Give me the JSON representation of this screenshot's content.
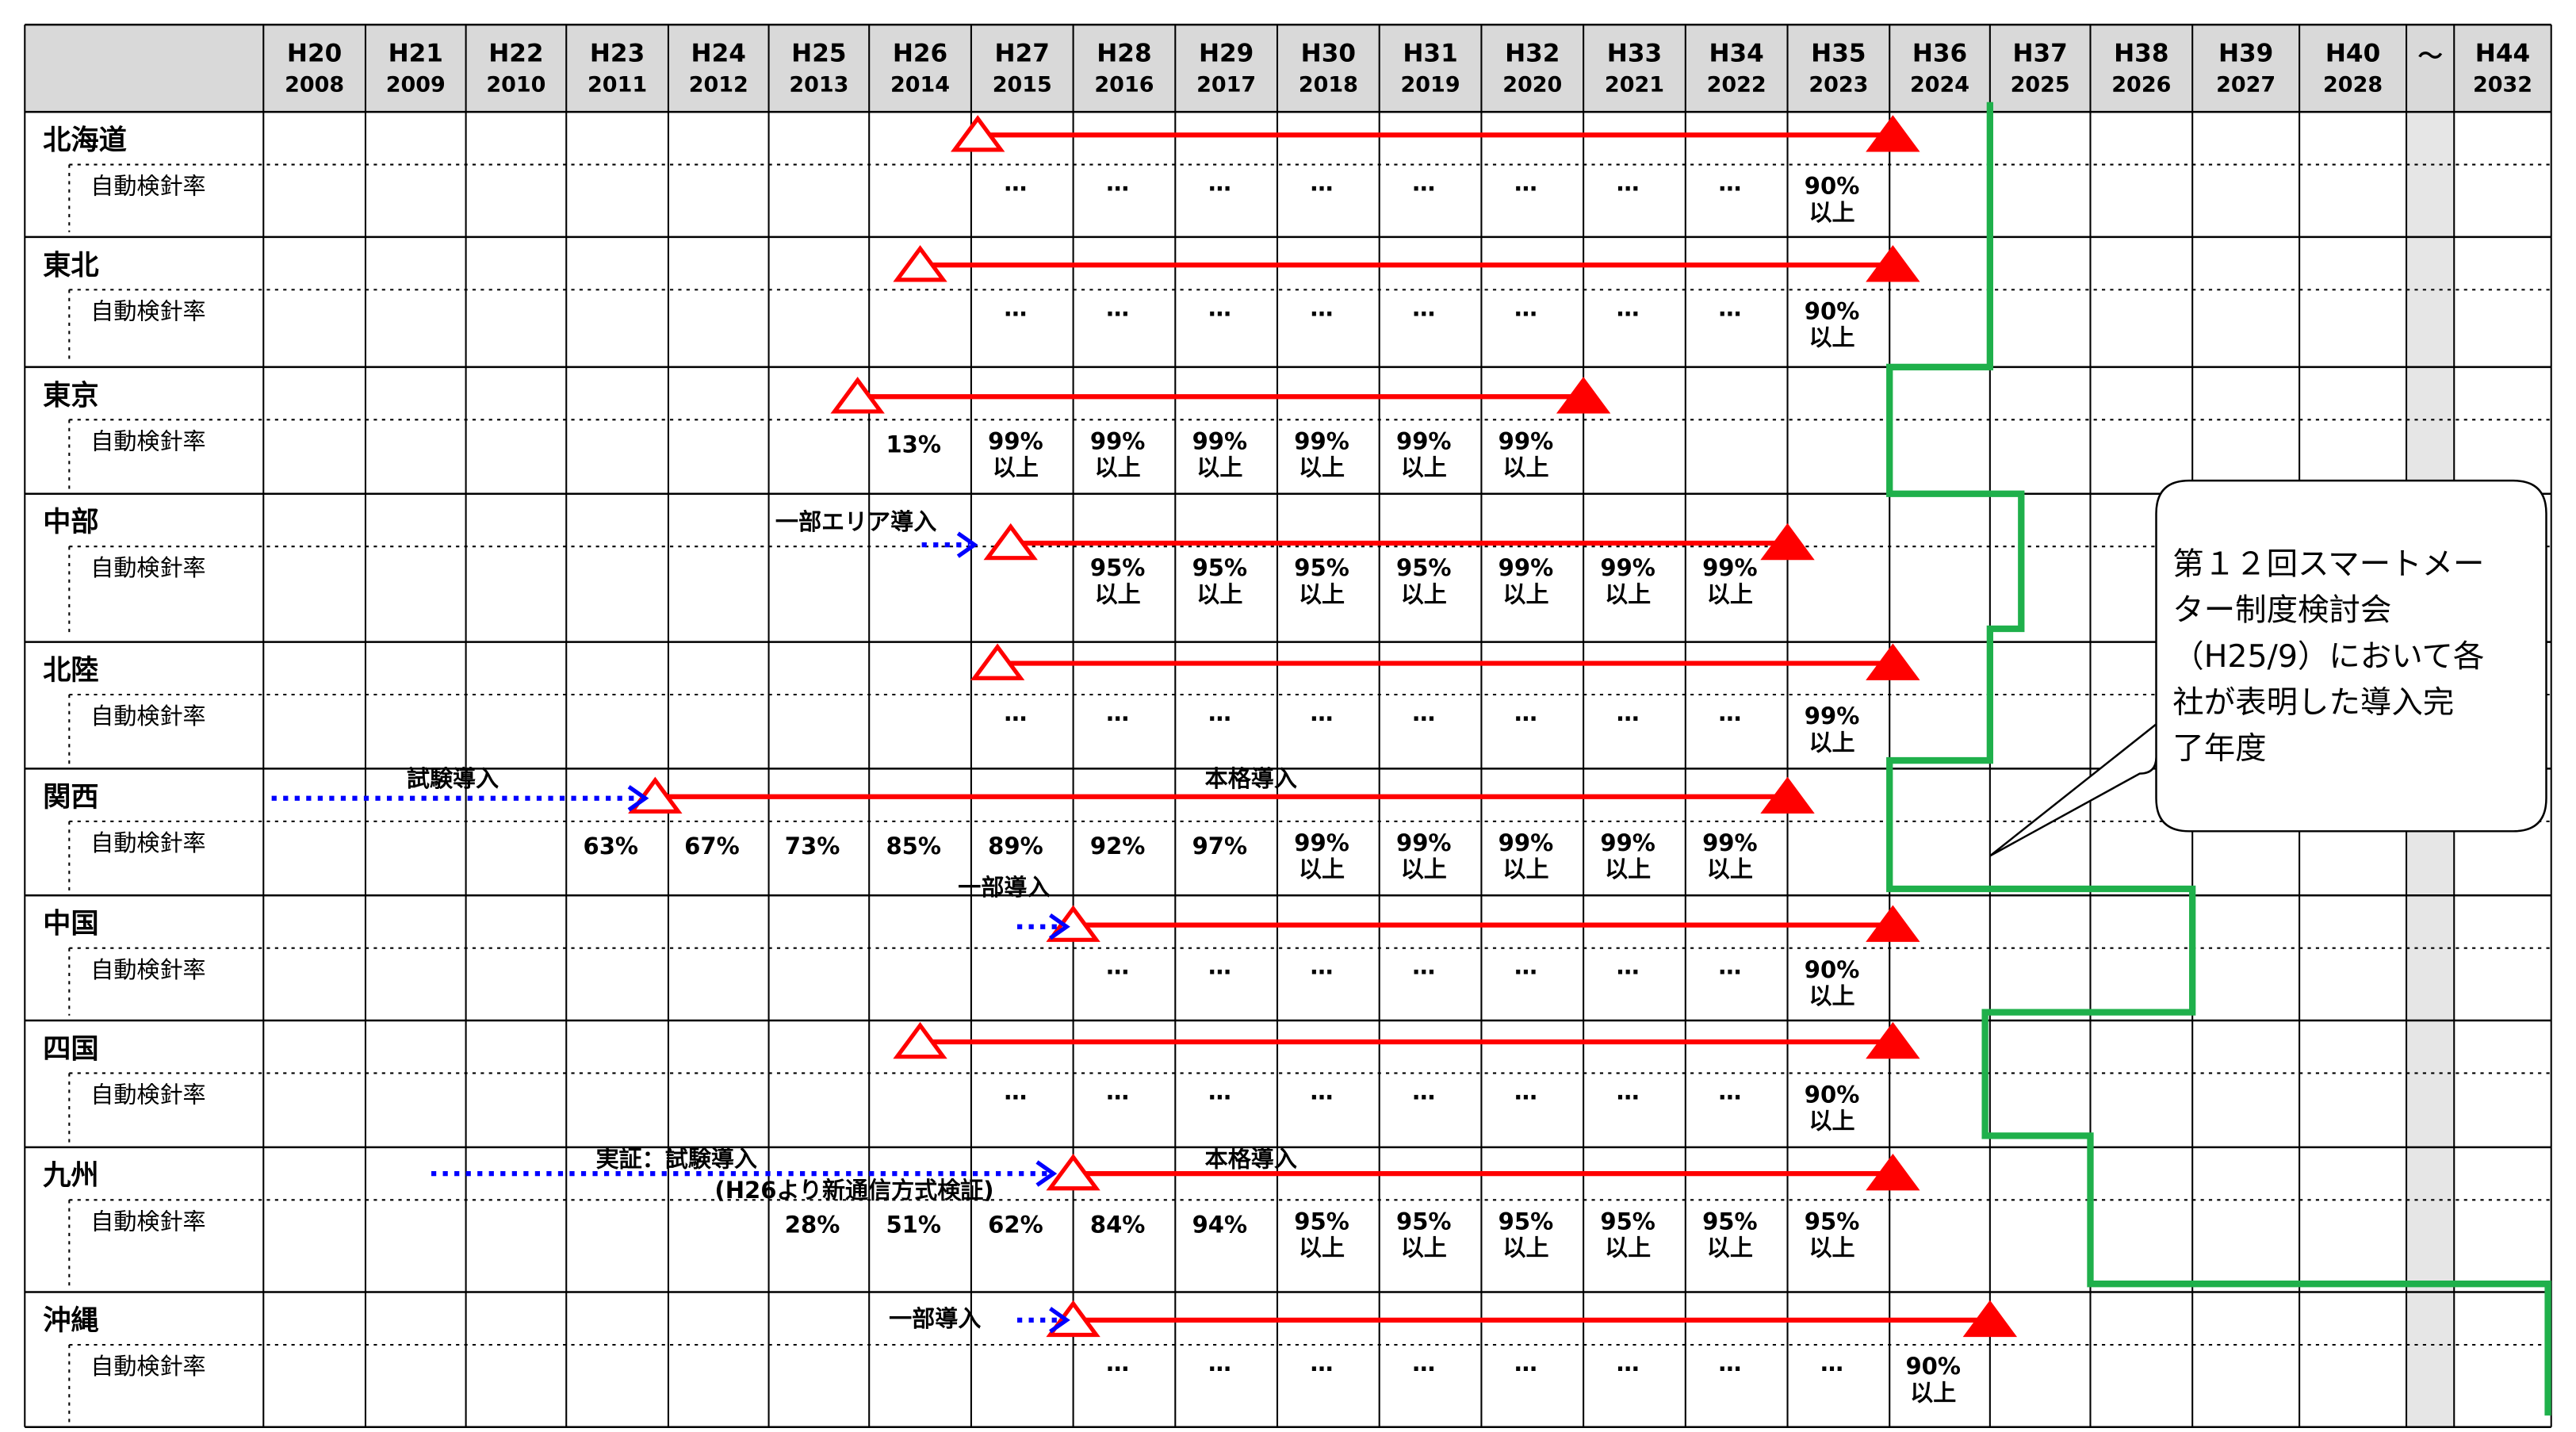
{
  "header": {
    "columns": [
      {
        "era": "H20",
        "year": "2008"
      },
      {
        "era": "H21",
        "year": "2009"
      },
      {
        "era": "H22",
        "year": "2010"
      },
      {
        "era": "H23",
        "year": "2011"
      },
      {
        "era": "H24",
        "year": "2012"
      },
      {
        "era": "H25",
        "year": "2013"
      },
      {
        "era": "H26",
        "year": "2014"
      },
      {
        "era": "H27",
        "year": "2015"
      },
      {
        "era": "H28",
        "year": "2016"
      },
      {
        "era": "H29",
        "year": "2017"
      },
      {
        "era": "H30",
        "year": "2018"
      },
      {
        "era": "H31",
        "year": "2019"
      },
      {
        "era": "H32",
        "year": "2020"
      },
      {
        "era": "H33",
        "year": "2021"
      },
      {
        "era": "H34",
        "year": "2022"
      },
      {
        "era": "H35",
        "year": "2023"
      },
      {
        "era": "H36",
        "year": "2024"
      },
      {
        "era": "H37",
        "year": "2025"
      },
      {
        "era": "H38",
        "year": "2026"
      },
      {
        "era": "H39",
        "year": "2027"
      },
      {
        "era": "H40",
        "year": "2028"
      },
      {
        "era": "～"
      },
      {
        "era": "H44",
        "year": "2032"
      }
    ]
  },
  "rows": [
    {
      "region": "北海道",
      "metric": "自動検針率",
      "notes": [],
      "values": [
        null,
        null,
        null,
        null,
        null,
        null,
        null,
        "…",
        "…",
        "…",
        "…",
        "…",
        "…",
        "…",
        "…",
        [
          "90%",
          "以上"
        ],
        null,
        null,
        null,
        null,
        null,
        null,
        null
      ]
    },
    {
      "region": "東北",
      "metric": "自動検針率",
      "notes": [],
      "values": [
        null,
        null,
        null,
        null,
        null,
        null,
        null,
        "…",
        "…",
        "…",
        "…",
        "…",
        "…",
        "…",
        "…",
        [
          "90%",
          "以上"
        ],
        null,
        null,
        null,
        null,
        null,
        null,
        null
      ]
    },
    {
      "region": "東京",
      "metric": "自動検針率",
      "notes": [],
      "values": [
        null,
        null,
        null,
        null,
        null,
        null,
        "13%",
        [
          "99%",
          "以上"
        ],
        [
          "99%",
          "以上"
        ],
        [
          "99%",
          "以上"
        ],
        [
          "99%",
          "以上"
        ],
        [
          "99%",
          "以上"
        ],
        [
          "99%",
          "以上"
        ],
        null,
        null,
        null,
        null,
        null,
        null,
        null,
        null,
        null,
        null
      ]
    },
    {
      "region": "中部",
      "metric": "自動検針率",
      "notes": [
        "一部エリア導入"
      ],
      "values": [
        null,
        null,
        null,
        null,
        null,
        null,
        null,
        null,
        [
          "95%",
          "以上"
        ],
        [
          "95%",
          "以上"
        ],
        [
          "95%",
          "以上"
        ],
        [
          "95%",
          "以上"
        ],
        [
          "99%",
          "以上"
        ],
        [
          "99%",
          "以上"
        ],
        [
          "99%",
          "以上"
        ],
        null,
        null,
        null,
        null,
        null,
        null,
        null,
        null
      ]
    },
    {
      "region": "北陸",
      "metric": "自動検針率",
      "notes": [],
      "values": [
        null,
        null,
        null,
        null,
        null,
        null,
        null,
        "…",
        "…",
        "…",
        "…",
        "…",
        "…",
        "…",
        "…",
        [
          "99%",
          "以上"
        ],
        null,
        null,
        null,
        null,
        null,
        null,
        null
      ]
    },
    {
      "region": "関西",
      "metric": "自動検針率",
      "notes": [
        "試験導入",
        "本格導入"
      ],
      "values": [
        null,
        null,
        null,
        "63%",
        "67%",
        "73%",
        "85%",
        "89%",
        "92%",
        "97%",
        [
          "99%",
          "以上"
        ],
        [
          "99%",
          "以上"
        ],
        [
          "99%",
          "以上"
        ],
        [
          "99%",
          "以上"
        ],
        [
          "99%",
          "以上"
        ],
        null,
        null,
        null,
        null,
        null,
        null,
        null,
        null
      ]
    },
    {
      "region": "中国",
      "metric": "自動検針率",
      "notes": [
        "一部導入"
      ],
      "values": [
        null,
        null,
        null,
        null,
        null,
        null,
        null,
        null,
        "…",
        "…",
        "…",
        "…",
        "…",
        "…",
        "…",
        [
          "90%",
          "以上"
        ],
        null,
        null,
        null,
        null,
        null,
        null,
        null
      ]
    },
    {
      "region": "四国",
      "metric": "自動検針率",
      "notes": [],
      "values": [
        null,
        null,
        null,
        null,
        null,
        null,
        null,
        "…",
        "…",
        "…",
        "…",
        "…",
        "…",
        "…",
        "…",
        [
          "90%",
          "以上"
        ],
        null,
        null,
        null,
        null,
        null,
        null,
        null
      ]
    },
    {
      "region": "九州",
      "metric": "自動検針率",
      "notes": [
        "実証：試験導入",
        "(H26より新通信方式検証)",
        "本格導入"
      ],
      "values": [
        null,
        null,
        null,
        null,
        null,
        "28%",
        "51%",
        "62%",
        "84%",
        "94%",
        [
          "95%",
          "以上"
        ],
        [
          "95%",
          "以上"
        ],
        [
          "95%",
          "以上"
        ],
        [
          "95%",
          "以上"
        ],
        [
          "95%",
          "以上"
        ],
        [
          "95%",
          "以上"
        ],
        null,
        null,
        null,
        null,
        null,
        null,
        null
      ]
    },
    {
      "region": "沖縄",
      "metric": "自動検針率",
      "notes": [
        "一部導入"
      ],
      "values": [
        null,
        null,
        null,
        null,
        null,
        null,
        null,
        null,
        "…",
        "…",
        "…",
        "…",
        "…",
        "…",
        "…",
        "…",
        [
          "90%",
          "以上"
        ],
        null,
        null,
        null,
        null,
        null,
        null
      ]
    }
  ],
  "callout": {
    "lines": [
      "第１２回スマートメー",
      "ター制度検討会",
      "（H25/9）において各",
      "社が表明した導入完",
      "了年度"
    ]
  }
}
